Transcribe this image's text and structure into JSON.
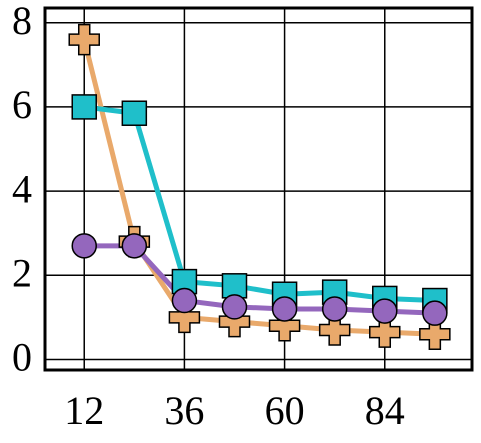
{
  "chart_data": {
    "type": "line",
    "x": [
      12,
      24,
      36,
      48,
      60,
      72,
      84,
      96
    ],
    "series": [
      {
        "color": "#e9a96b",
        "marker": "plus",
        "values": [
          7.6,
          2.8,
          1.0,
          0.9,
          0.8,
          0.7,
          0.65,
          0.6
        ]
      },
      {
        "color": "#1fbfca",
        "marker": "square",
        "values": [
          6.0,
          5.85,
          1.85,
          1.75,
          1.55,
          1.6,
          1.45,
          1.4
        ]
      },
      {
        "color": "#9467bd",
        "marker": "circle",
        "values": [
          2.7,
          2.7,
          1.4,
          1.25,
          1.2,
          1.2,
          1.15,
          1.1
        ]
      }
    ],
    "xlim": [
      2.6,
      104.9
    ],
    "xticks": [
      12,
      36,
      60,
      84
    ],
    "ylim": [
      -0.25,
      8.35
    ],
    "yticks": [
      0,
      2,
      4,
      6,
      8
    ],
    "grid": true
  }
}
